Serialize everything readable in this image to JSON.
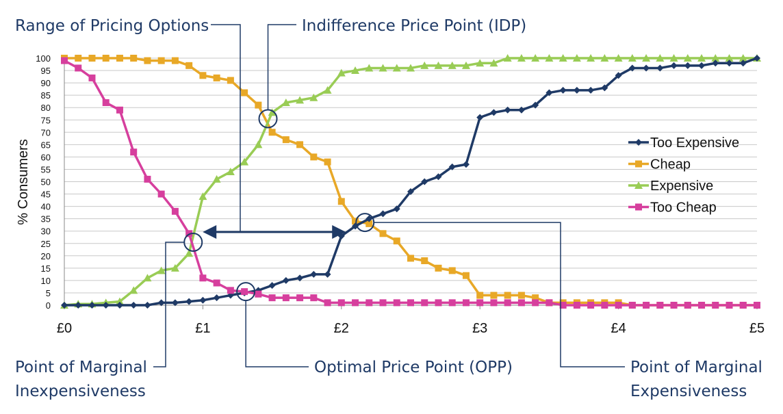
{
  "chart_data": {
    "type": "line",
    "xlabel": "",
    "ylabel": "% Consumers",
    "xlim": [
      0,
      5
    ],
    "ylim": [
      0,
      100
    ],
    "x_ticks": [
      {
        "value": 0,
        "label": "£0"
      },
      {
        "value": 1,
        "label": "£1"
      },
      {
        "value": 2,
        "label": "£2"
      },
      {
        "value": 3,
        "label": "£3"
      },
      {
        "value": 4,
        "label": "£4"
      },
      {
        "value": 5,
        "label": "£5"
      }
    ],
    "y_ticks": [
      0,
      5,
      10,
      15,
      20,
      25,
      30,
      35,
      40,
      45,
      50,
      55,
      60,
      65,
      70,
      75,
      80,
      85,
      90,
      95,
      100
    ],
    "grid": "horizontal",
    "legend_position": "right",
    "x": [
      0,
      0.1,
      0.2,
      0.3,
      0.4,
      0.5,
      0.6,
      0.7,
      0.8,
      0.9,
      1.0,
      1.1,
      1.2,
      1.3,
      1.4,
      1.5,
      1.6,
      1.7,
      1.8,
      1.9,
      2.0,
      2.1,
      2.2,
      2.3,
      2.4,
      2.5,
      2.6,
      2.7,
      2.8,
      2.9,
      3.0,
      3.1,
      3.2,
      3.3,
      3.4,
      3.5,
      3.6,
      3.7,
      3.8,
      3.9,
      4.0,
      4.1,
      4.2,
      4.3,
      4.4,
      4.5,
      4.6,
      4.7,
      4.8,
      4.9,
      5.0
    ],
    "series": [
      {
        "name": "Too Expensive",
        "color": "#1f3a66",
        "marker": "diamond",
        "values": [
          0,
          0,
          0,
          0,
          0,
          0,
          0,
          1,
          1,
          1.5,
          2,
          3,
          4,
          5,
          6,
          8,
          10,
          11,
          12.5,
          12.5,
          28,
          32,
          35,
          37,
          39,
          46,
          50,
          52,
          56,
          57,
          76,
          78,
          79,
          79,
          81,
          86,
          87,
          87,
          87,
          88,
          93,
          96,
          96,
          96,
          97,
          97,
          97,
          98,
          98,
          98,
          100
        ]
      },
      {
        "name": "Cheap",
        "color": "#e8a827",
        "marker": "square",
        "values": [
          100,
          100,
          100,
          100,
          100,
          100,
          99,
          99,
          99,
          97,
          93,
          92,
          91,
          86,
          81,
          70,
          67,
          65,
          60,
          58,
          42,
          34,
          33,
          29,
          26,
          19,
          18,
          15,
          14,
          12,
          4,
          4,
          4,
          4,
          3,
          1,
          1,
          1,
          1,
          1,
          1,
          0,
          0,
          0,
          0,
          0,
          0,
          0,
          0,
          0,
          0
        ]
      },
      {
        "name": "Expensive",
        "color": "#99cc55",
        "marker": "triangle",
        "values": [
          0,
          0.5,
          0.5,
          1,
          1.5,
          6,
          11,
          14,
          15,
          21,
          44,
          51,
          54,
          58,
          65,
          78,
          82,
          83,
          84,
          87,
          94,
          95,
          96,
          96,
          96,
          96,
          97,
          97,
          97,
          97,
          98,
          98,
          100,
          100,
          100,
          100,
          100,
          100,
          100,
          100,
          100,
          100,
          100,
          100,
          100,
          100,
          100,
          100,
          100,
          100,
          100
        ]
      },
      {
        "name": "Too Cheap",
        "color": "#d63f9d",
        "marker": "square",
        "values": [
          99,
          96,
          92,
          82,
          79,
          62,
          51,
          45,
          38,
          29,
          11,
          9,
          6,
          5.5,
          4.5,
          3,
          3,
          3,
          3,
          1,
          1,
          1,
          1,
          1,
          1,
          1,
          1,
          1,
          1,
          1,
          1,
          1,
          1,
          1,
          1,
          1,
          0,
          0,
          0,
          0,
          0,
          0,
          0,
          0,
          0,
          0,
          0,
          0,
          0,
          0,
          0
        ]
      }
    ],
    "annotations": [
      {
        "key": "range",
        "label": "Range of Pricing Options"
      },
      {
        "key": "idp",
        "label": "Indifference Price Point (IDP)"
      },
      {
        "key": "pmi",
        "label_line1": "Point of Marginal",
        "label_line2": "Inexpensiveness",
        "x": 0.93,
        "y": 25.5
      },
      {
        "key": "opp",
        "label": "Optimal Price Point (OPP)",
        "x": 1.31,
        "y": 5.5
      },
      {
        "key": "pme",
        "label_line1": "Point of Marginal",
        "label_line2": "Expensiveness",
        "x": 2.17,
        "y": 33.5
      },
      {
        "key": "idp_point",
        "x": 1.47,
        "y": 75.5
      }
    ]
  }
}
